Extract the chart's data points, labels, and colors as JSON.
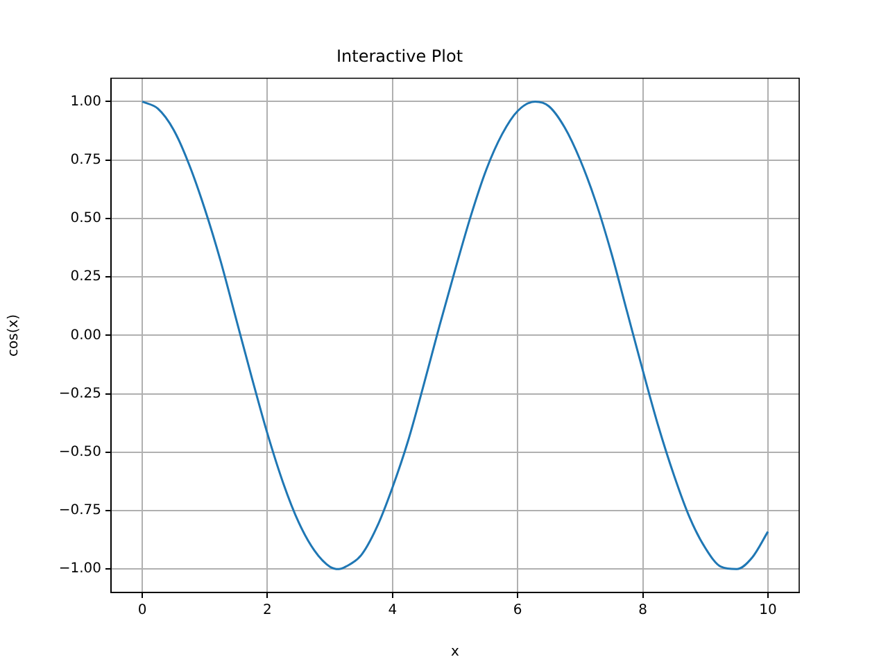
{
  "chart_data": {
    "type": "line",
    "title": "Interactive Plot",
    "xlabel": "x",
    "ylabel": "cos(x)",
    "x": [
      0,
      0.25,
      0.5,
      0.75,
      1,
      1.25,
      1.5,
      1.75,
      2,
      2.25,
      2.5,
      2.75,
      3,
      3.14,
      3.25,
      3.5,
      3.75,
      4,
      4.25,
      4.5,
      4.75,
      5,
      5.25,
      5.5,
      5.75,
      6,
      6.28,
      6.5,
      6.75,
      7,
      7.25,
      7.5,
      7.75,
      8,
      8.25,
      8.5,
      8.75,
      9,
      9.25,
      9.5,
      9.75,
      10
    ],
    "series": [
      {
        "color": "#1f77b4",
        "values": [
          1.0,
          0.97,
          0.88,
          0.73,
          0.54,
          0.32,
          0.07,
          -0.18,
          -0.42,
          -0.63,
          -0.8,
          -0.92,
          -0.99,
          -1.0,
          -0.99,
          -0.94,
          -0.82,
          -0.65,
          -0.45,
          -0.21,
          0.04,
          0.28,
          0.51,
          0.71,
          0.86,
          0.96,
          1.0,
          0.98,
          0.89,
          0.75,
          0.57,
          0.35,
          0.1,
          -0.15,
          -0.39,
          -0.6,
          -0.78,
          -0.91,
          -0.99,
          -1.0,
          -0.95,
          -0.84
        ]
      }
    ],
    "xlim": [
      -0.5,
      10.5
    ],
    "ylim": [
      -1.1,
      1.1
    ],
    "xticks": [
      0,
      2,
      4,
      6,
      8,
      10
    ],
    "yticks": [
      {
        "value": -1,
        "label": "−1.00"
      },
      {
        "value": -0.75,
        "label": "−0.75"
      },
      {
        "value": -0.5,
        "label": "−0.50"
      },
      {
        "value": -0.25,
        "label": "−0.25"
      },
      {
        "value": 0,
        "label": "0.00"
      },
      {
        "value": 0.25,
        "label": "0.25"
      },
      {
        "value": 0.5,
        "label": "0.50"
      },
      {
        "value": 0.75,
        "label": "0.75"
      },
      {
        "value": 1,
        "label": "1.00"
      }
    ],
    "grid": true,
    "legend": false,
    "marker": "none",
    "line_style": "solid"
  }
}
